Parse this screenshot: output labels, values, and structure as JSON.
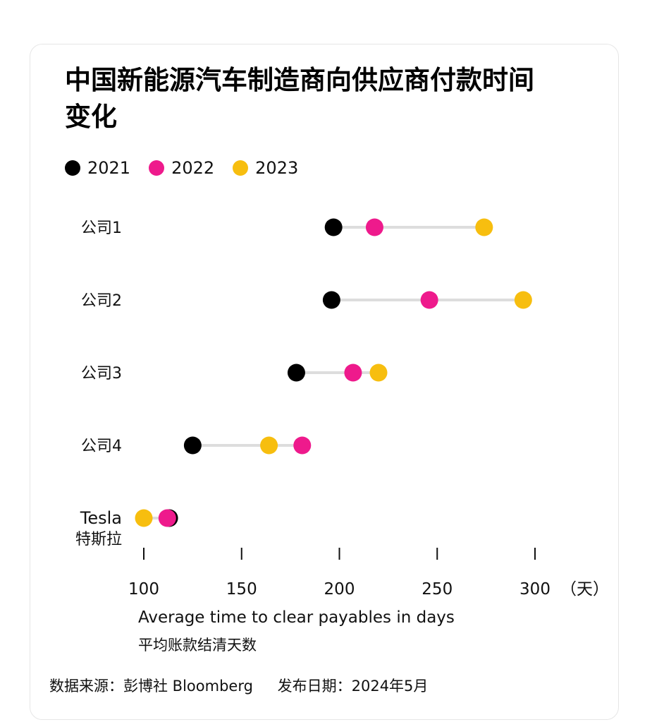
{
  "title": "中国新能源汽车制造商向供应商付款时间变化",
  "legend": [
    {
      "label": "2021",
      "color": "#000000"
    },
    {
      "label": "2022",
      "color": "#ee1a8c"
    },
    {
      "label": "2023",
      "color": "#f7be0f"
    }
  ],
  "chart_data": {
    "type": "dot-plot",
    "xlim": [
      100,
      300
    ],
    "x_ticks": [
      100,
      150,
      200,
      250,
      300
    ],
    "x_unit": "（天）",
    "xlabel": "Average time to clear payables in days",
    "xlabel_cn": "平均账款结清天数",
    "categories": [
      {
        "label": [
          "公司1"
        ],
        "2021": 197,
        "2022": 218,
        "2023": 274
      },
      {
        "label": [
          "公司2"
        ],
        "2021": 196,
        "2022": 246,
        "2023": 294
      },
      {
        "label": [
          "公司3"
        ],
        "2021": 178,
        "2022": 207,
        "2023": 220
      },
      {
        "label": [
          "公司4"
        ],
        "2021": 125,
        "2022": 181,
        "2023": 164
      },
      {
        "label": [
          "Tesla",
          "特斯拉"
        ],
        "2021": 113,
        "2022": 112,
        "2023": 100
      }
    ],
    "line_color": "#dddddd"
  },
  "footer": {
    "source": "数据来源：彭博社 Bloomberg",
    "date": "发布日期：2024年5月"
  }
}
